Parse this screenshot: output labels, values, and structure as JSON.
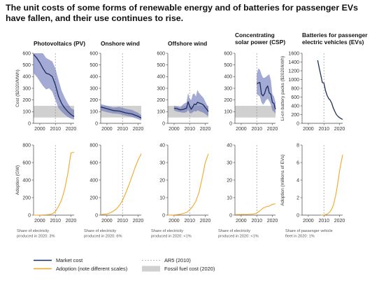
{
  "title": "The unit costs of some forms of renewable energy and of batteries for passenger EVs have fallen, and their use continues to rise.",
  "colors": {
    "market": "#1f2d5c",
    "band": "#6a76b8",
    "adoption": "#f5a623",
    "fossil": "#d0d0d0",
    "ar5": "#9a9a9a"
  },
  "legend": [
    {
      "label": "Market cost",
      "kind": "line",
      "color": "#1f2d5c"
    },
    {
      "label": "Adoption (note different scales)",
      "kind": "line",
      "color": "#f5a623"
    },
    {
      "label": "AR5 (2010)",
      "kind": "dash",
      "color": "#9a9a9a"
    },
    {
      "label": "Fossil fuel cost (2020)",
      "kind": "box",
      "color": "#d0d0d0"
    }
  ],
  "chart_data": [
    {
      "type": "area",
      "panel": "Photovoltaics (PV)",
      "row": "cost",
      "ylabel": "Cost ($2020/MWh)",
      "ylim": [
        0,
        600
      ],
      "yticks": [
        0,
        100,
        200,
        300,
        400,
        500,
        600
      ],
      "xlim": [
        1996,
        2022
      ],
      "xticks": [
        2000,
        2010,
        2020
      ],
      "ar5": 2010,
      "fossil_band": [
        50,
        150
      ],
      "x": [
        1996,
        1998,
        2000,
        2002,
        2004,
        2006,
        2008,
        2010,
        2012,
        2014,
        2016,
        2018,
        2020,
        2022
      ],
      "values": [
        590,
        560,
        520,
        470,
        430,
        420,
        400,
        330,
        230,
        170,
        130,
        100,
        75,
        58
      ],
      "band_high": [
        600,
        600,
        600,
        600,
        560,
        545,
        530,
        470,
        370,
        280,
        220,
        170,
        130,
        115
      ],
      "band_low": [
        430,
        400,
        360,
        320,
        290,
        300,
        270,
        200,
        130,
        100,
        75,
        55,
        40,
        32
      ]
    },
    {
      "type": "area",
      "panel": "Onshore wind",
      "row": "cost",
      "ylim": [
        0,
        600
      ],
      "yticks": [
        0,
        100,
        200,
        300,
        400,
        500,
        600
      ],
      "xlim": [
        1996,
        2022
      ],
      "xticks": [
        2000,
        2010,
        2020
      ],
      "ar5": 2010,
      "fossil_band": [
        50,
        150
      ],
      "x": [
        1996,
        2000,
        2004,
        2008,
        2012,
        2016,
        2020,
        2022
      ],
      "values": [
        140,
        125,
        110,
        105,
        90,
        80,
        60,
        45
      ],
      "band_high": [
        165,
        150,
        135,
        140,
        125,
        115,
        90,
        70
      ],
      "band_low": [
        110,
        95,
        85,
        80,
        65,
        55,
        35,
        25
      ]
    },
    {
      "type": "area",
      "panel": "Offshore wind",
      "row": "cost",
      "ylim": [
        0,
        600
      ],
      "yticks": [
        0,
        100,
        200,
        300,
        400,
        500,
        600
      ],
      "xlim": [
        1996,
        2022
      ],
      "xticks": [
        2000,
        2010,
        2020
      ],
      "ar5": 2010,
      "fossil_band": [
        50,
        150
      ],
      "x": [
        2000,
        2002,
        2004,
        2006,
        2008,
        2009,
        2010,
        2011,
        2012,
        2013,
        2014,
        2015,
        2016,
        2017,
        2018,
        2019,
        2020,
        2021,
        2022
      ],
      "values": [
        130,
        125,
        115,
        120,
        130,
        185,
        145,
        120,
        140,
        165,
        160,
        180,
        175,
        170,
        165,
        155,
        135,
        120,
        100
      ],
      "band_high": [
        150,
        145,
        135,
        165,
        180,
        260,
        210,
        200,
        250,
        255,
        230,
        285,
        260,
        245,
        230,
        215,
        185,
        160,
        140
      ],
      "band_low": [
        110,
        100,
        95,
        90,
        95,
        115,
        90,
        85,
        95,
        105,
        100,
        110,
        105,
        100,
        95,
        90,
        80,
        70,
        60
      ]
    },
    {
      "type": "area",
      "panel": "Concentrating solar power (CSP)",
      "row": "cost",
      "ylim": [
        0,
        600
      ],
      "yticks": [
        0,
        100,
        200,
        300,
        400,
        500,
        600
      ],
      "xlim": [
        1996,
        2022
      ],
      "xticks": [
        2000,
        2010,
        2020
      ],
      "ar5": 2010,
      "fossil_band": [
        50,
        150
      ],
      "x": [
        2010,
        2011,
        2012,
        2013,
        2014,
        2015,
        2016,
        2017,
        2018,
        2019,
        2020,
        2021,
        2022
      ],
      "values": [
        340,
        345,
        350,
        250,
        235,
        255,
        300,
        320,
        260,
        250,
        180,
        170,
        120
      ],
      "band_high": [
        420,
        470,
        460,
        420,
        390,
        390,
        400,
        410,
        420,
        370,
        250,
        230,
        180
      ],
      "band_low": [
        250,
        240,
        230,
        180,
        160,
        175,
        200,
        210,
        190,
        160,
        110,
        100,
        80
      ]
    },
    {
      "type": "line",
      "panel": "Batteries for passenger electric vehicles (EVs)",
      "row": "cost",
      "ylabel": "Li-on battery packs ($2020/kWh)",
      "ylim": [
        0,
        1600
      ],
      "yticks": [
        0,
        200,
        400,
        600,
        800,
        1000,
        1200,
        1400,
        1600
      ],
      "xlim": [
        1996,
        2022
      ],
      "xticks": [
        2000,
        2010,
        2020
      ],
      "ar5": 2010,
      "x": [
        2006,
        2007,
        2008,
        2009,
        2010,
        2011,
        2012,
        2013,
        2014,
        2015,
        2016,
        2017,
        2018,
        2019,
        2020,
        2021,
        2022
      ],
      "values": [
        1440,
        1260,
        1100,
        930,
        920,
        750,
        640,
        570,
        530,
        460,
        350,
        270,
        200,
        160,
        130,
        110,
        90
      ]
    },
    {
      "type": "line",
      "panel": "Photovoltaics (PV)",
      "row": "adoption",
      "ylabel": "Adoption (GW)",
      "ylim": [
        0,
        800
      ],
      "yticks": [
        0,
        200,
        400,
        600,
        800
      ],
      "xlim": [
        1996,
        2022
      ],
      "xticks": [
        2000,
        2010,
        2020
      ],
      "ar5": 2010,
      "note": "Share of electricity produced in 2020: 3%",
      "x": [
        1996,
        2000,
        2004,
        2006,
        2008,
        2010,
        2012,
        2014,
        2016,
        2018,
        2020,
        2022
      ],
      "values": [
        0,
        1,
        4,
        7,
        15,
        40,
        100,
        175,
        300,
        480,
        710,
        720
      ]
    },
    {
      "type": "line",
      "panel": "Onshore wind",
      "row": "adoption",
      "ylim": [
        0,
        800
      ],
      "yticks": [
        0,
        200,
        400,
        600,
        800
      ],
      "xlim": [
        1996,
        2022
      ],
      "xticks": [
        2000,
        2010,
        2020
      ],
      "ar5": 2010,
      "note": "Share of electricity produced in 2020: 6%",
      "x": [
        1996,
        2000,
        2002,
        2004,
        2006,
        2008,
        2010,
        2012,
        2014,
        2016,
        2018,
        2020,
        2022
      ],
      "values": [
        5,
        15,
        25,
        45,
        70,
        110,
        170,
        250,
        340,
        440,
        540,
        630,
        700
      ]
    },
    {
      "type": "line",
      "panel": "Offshore wind",
      "row": "adoption",
      "ylim": [
        0,
        40
      ],
      "yticks": [
        0,
        10,
        20,
        30,
        40
      ],
      "xlim": [
        1996,
        2022
      ],
      "xticks": [
        2000,
        2010,
        2020
      ],
      "ar5": 2010,
      "note": "Share of electricity produced in 2020: <1%",
      "x": [
        1996,
        2000,
        2004,
        2008,
        2010,
        2012,
        2014,
        2016,
        2018,
        2020,
        2022
      ],
      "values": [
        0,
        0.1,
        0.5,
        1.5,
        3,
        5,
        8,
        13,
        21,
        30,
        35
      ]
    },
    {
      "type": "line",
      "panel": "Concentrating solar power (CSP)",
      "row": "adoption",
      "ylim": [
        0,
        40
      ],
      "yticks": [
        0,
        10,
        20,
        30,
        40
      ],
      "xlim": [
        1996,
        2022
      ],
      "xticks": [
        2000,
        2010,
        2020
      ],
      "ar5": 2010,
      "note": "Share of electricity produced in 2020: <1%",
      "x": [
        1996,
        2000,
        2004,
        2006,
        2008,
        2010,
        2012,
        2014,
        2016,
        2018,
        2020,
        2022
      ],
      "values": [
        0.3,
        0.4,
        0.4,
        0.5,
        0.7,
        1.2,
        2.5,
        4,
        4.8,
        5.2,
        6.2,
        6.5
      ]
    },
    {
      "type": "line",
      "panel": "Batteries for passenger electric vehicles (EVs)",
      "row": "adoption",
      "ylabel": "Adoption (millions of EVs)",
      "ylim": [
        0,
        8
      ],
      "yticks": [
        0,
        2,
        4,
        6,
        8
      ],
      "xlim": [
        1996,
        2022
      ],
      "xticks": [
        2000,
        2010,
        2020
      ],
      "ar5": 2010,
      "note": "Share of passenger vehicle fleet in 2020: 1%",
      "x": [
        2008,
        2010,
        2012,
        2014,
        2015,
        2016,
        2017,
        2018,
        2019,
        2020,
        2021,
        2022
      ],
      "values": [
        0,
        0.02,
        0.1,
        0.4,
        0.7,
        1.1,
        1.8,
        2.7,
        3.8,
        5,
        6,
        6.9
      ]
    }
  ]
}
